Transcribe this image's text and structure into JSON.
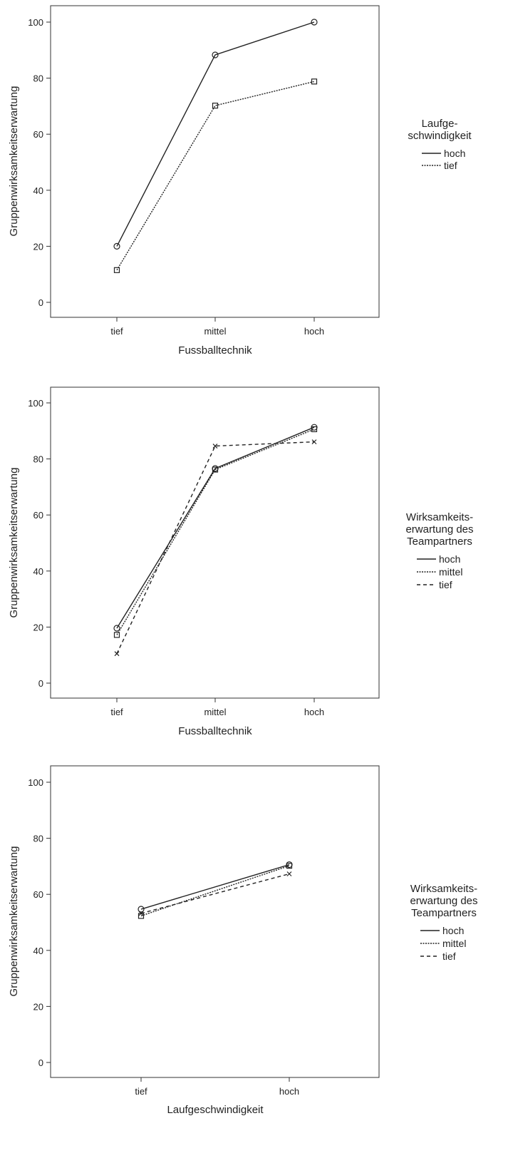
{
  "chart_data": [
    {
      "type": "line",
      "xlabel": "Fussballtechnik",
      "ylabel": "Gruppenwirksamkeitserwartung",
      "categories": [
        "tief",
        "mittel",
        "hoch"
      ],
      "ylim": [
        0,
        100
      ],
      "yticks": [
        0,
        20,
        40,
        60,
        80,
        100
      ],
      "legend": {
        "title_lines": [
          "Laufge-",
          "schwindigkeit"
        ],
        "placement": "right"
      },
      "series": [
        {
          "name": "hoch",
          "values": [
            20,
            88.3,
            100
          ],
          "dash": "solid",
          "marker": "circle"
        },
        {
          "name": "tief",
          "values": [
            11.5,
            70.2,
            78.8
          ],
          "dash": "dotted",
          "marker": "square"
        }
      ]
    },
    {
      "type": "line",
      "xlabel": "Fussballtechnik",
      "ylabel": "Gruppenwirksamkeitserwartung",
      "categories": [
        "tief",
        "mittel",
        "hoch"
      ],
      "ylim": [
        0,
        100
      ],
      "yticks": [
        0,
        20,
        40,
        60,
        80,
        100
      ],
      "legend": {
        "title_lines": [
          "Wirksamkeits-",
          "erwartung des",
          "Teampartners"
        ],
        "placement": "right"
      },
      "series": [
        {
          "name": "hoch",
          "values": [
            19.6,
            76.6,
            91.3
          ],
          "dash": "solid",
          "marker": "circle"
        },
        {
          "name": "mittel",
          "values": [
            17.2,
            76.2,
            90.6
          ],
          "dash": "dotted",
          "marker": "square"
        },
        {
          "name": "tief",
          "values": [
            10.5,
            84.6,
            86.1
          ],
          "dash": "dashed",
          "marker": "x"
        }
      ]
    },
    {
      "type": "line",
      "xlabel": "Laufgeschwindigkeit",
      "ylabel": "Gruppenwirksamkeitserwartung",
      "categories": [
        "tief",
        "hoch"
      ],
      "ylim": [
        0,
        100
      ],
      "yticks": [
        0,
        20,
        40,
        60,
        80,
        100
      ],
      "legend": {
        "title_lines": [
          "Wirksamkeits-",
          "erwartung des",
          "Teampartners"
        ],
        "placement": "right"
      },
      "series": [
        {
          "name": "hoch",
          "values": [
            54.7,
            70.6
          ],
          "dash": "solid",
          "marker": "circle"
        },
        {
          "name": "mittel",
          "values": [
            52.3,
            70.2
          ],
          "dash": "dotted",
          "marker": "square"
        },
        {
          "name": "tief",
          "values": [
            53.2,
            67.3
          ],
          "dash": "dashed",
          "marker": "x"
        }
      ]
    }
  ]
}
